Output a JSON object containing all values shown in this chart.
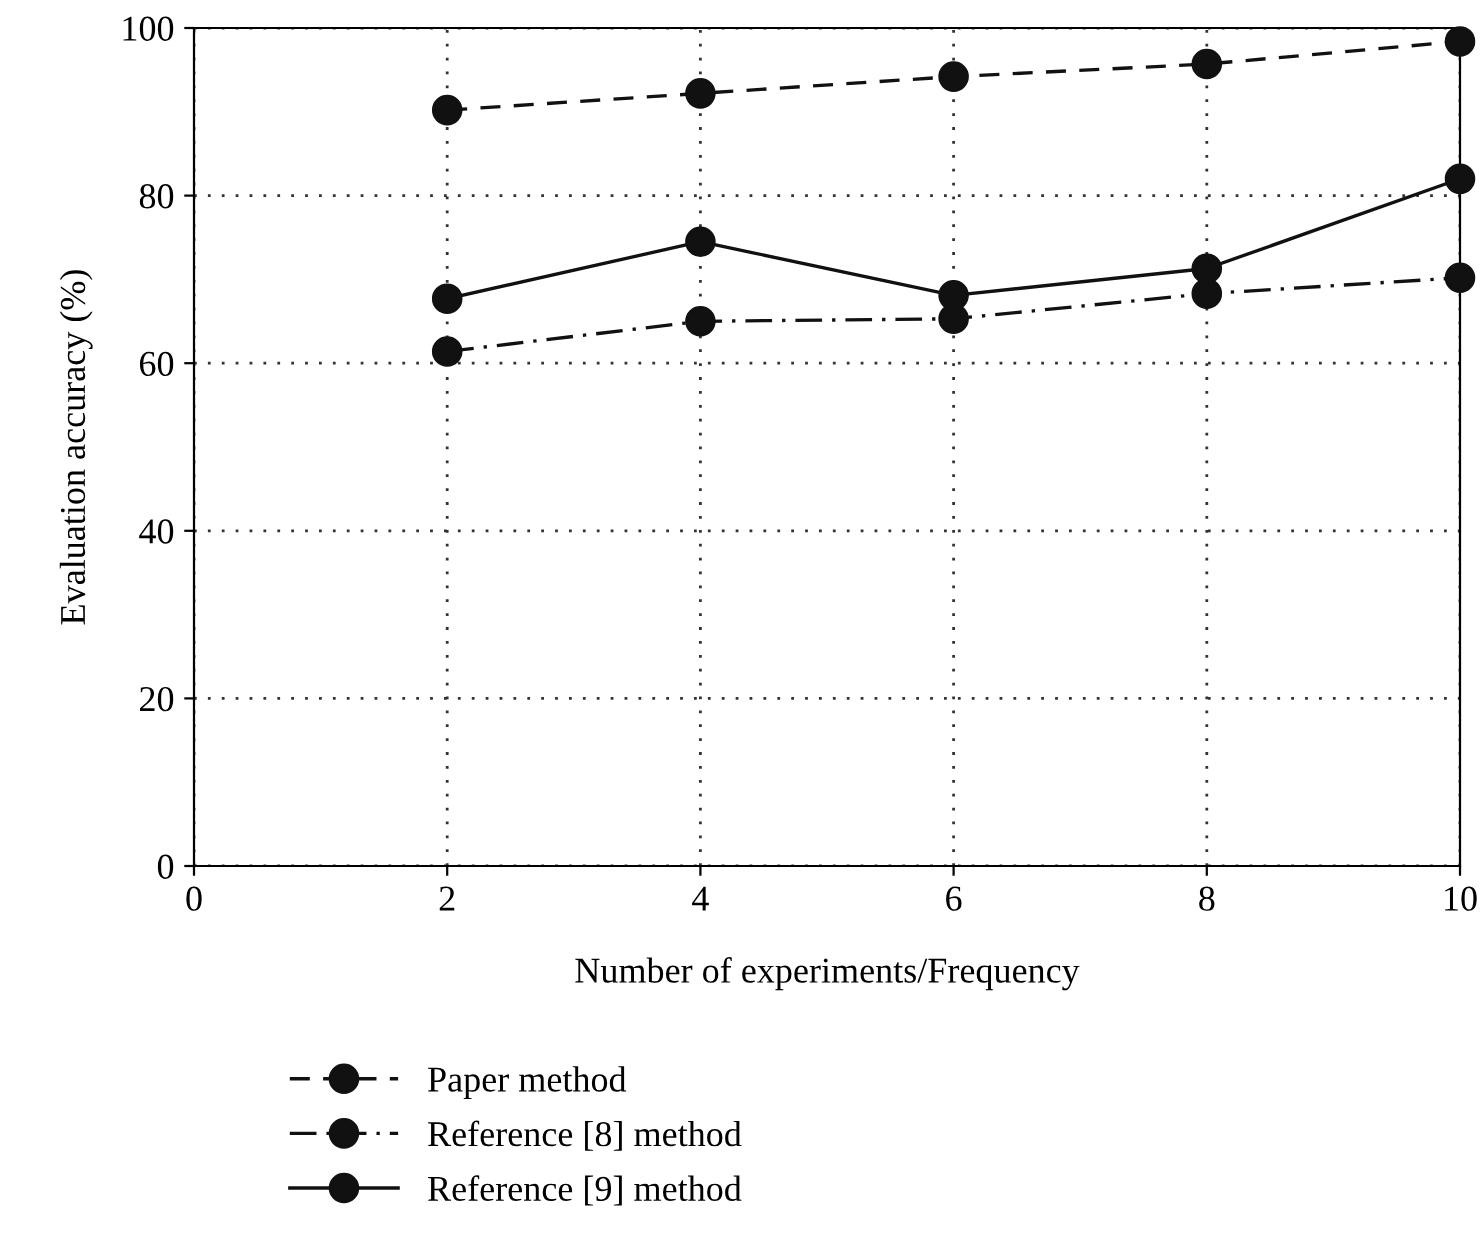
{
  "chart_data": {
    "type": "line",
    "xlabel": "Number of experiments/Frequency",
    "ylabel": "Evaluation accuracy (%)",
    "x": [
      2,
      4,
      6,
      8,
      10
    ],
    "series": [
      {
        "name": "Paper method",
        "color": "#111111",
        "line_style": "dashed",
        "values": [
          90.2,
          92.2,
          94.2,
          95.7,
          98.4
        ]
      },
      {
        "name": "Reference [8] method",
        "color": "#111111",
        "line_style": "dashdot",
        "values": [
          61.4,
          65.0,
          65.3,
          68.3,
          70.2
        ]
      },
      {
        "name": "Reference [9] method",
        "color": "#111111",
        "line_style": "solid",
        "values": [
          67.7,
          74.5,
          68.1,
          71.3,
          82.0
        ]
      }
    ],
    "xlim": [
      0,
      10
    ],
    "xticks": [
      0,
      2,
      4,
      6,
      8,
      10
    ],
    "ylim": [
      0,
      100
    ],
    "yticks": [
      0,
      20,
      40,
      60,
      80,
      100
    ],
    "grid": true,
    "legend": "bottom left",
    "marker": "circle"
  }
}
